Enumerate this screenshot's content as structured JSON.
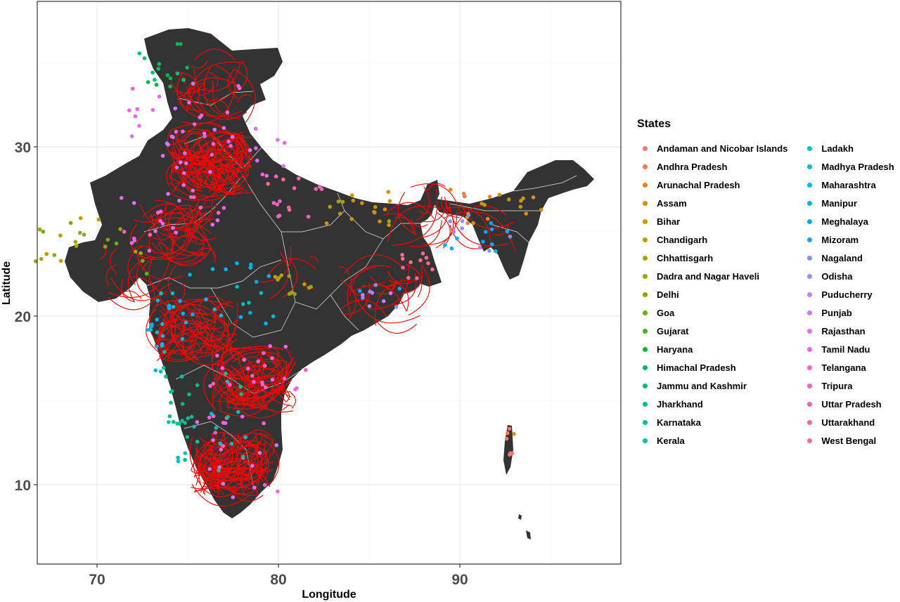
{
  "map": {
    "xlabel": "Longitude",
    "ylabel": "Latitude",
    "x_ticks": [
      "70",
      "80",
      "90"
    ],
    "y_ticks": [
      "10",
      "20",
      "30"
    ],
    "land_color": "#333333",
    "border_color": "#ffffff",
    "arc_color": "#ff0000",
    "panel_border": "#333333",
    "grid_color": "#ebebeb"
  },
  "legend": {
    "title": "States",
    "items": [
      {
        "label": "Andaman and Nicobar Islands",
        "color": "#F8766D"
      },
      {
        "label": "Andhra Pradesh",
        "color": "#F17D4F"
      },
      {
        "label": "Arunachal Pradesh",
        "color": "#E7851E"
      },
      {
        "label": "Assam",
        "color": "#DB8E00"
      },
      {
        "label": "Bihar",
        "color": "#CD9600"
      },
      {
        "label": "Chandigarh",
        "color": "#BE9C00"
      },
      {
        "label": "Chhattisgarh",
        "color": "#ADA200"
      },
      {
        "label": "Dadra and Nagar Haveli",
        "color": "#9AA700"
      },
      {
        "label": "Delhi",
        "color": "#84AC00"
      },
      {
        "label": "Goa",
        "color": "#69B100"
      },
      {
        "label": "Gujarat",
        "color": "#40B415"
      },
      {
        "label": "Haryana",
        "color": "#00B836"
      },
      {
        "label": "Himachal Pradesh",
        "color": "#00BB4F"
      },
      {
        "label": "Jammu and Kashmir",
        "color": "#00BD68"
      },
      {
        "label": "Jharkhand",
        "color": "#00BF7F"
      },
      {
        "label": "Karnataka",
        "color": "#00C096"
      },
      {
        "label": "Kerala",
        "color": "#00C0AC"
      },
      {
        "label": "Ladakh",
        "color": "#00BEC1"
      },
      {
        "label": "Madhya Pradesh",
        "color": "#00BBD5"
      },
      {
        "label": "Maharashtra",
        "color": "#00B7E7"
      },
      {
        "label": "Manipur",
        "color": "#00B0F6"
      },
      {
        "label": "Meghalaya",
        "color": "#00A8FF"
      },
      {
        "label": "Mizoram",
        "color": "#1F9EFF"
      },
      {
        "label": "Nagaland",
        "color": "#7B94FF"
      },
      {
        "label": "Odisha",
        "color": "#A18AFF"
      },
      {
        "label": "Puducherry",
        "color": "#BE80FF"
      },
      {
        "label": "Punjab",
        "color": "#D575FE"
      },
      {
        "label": "Rajasthan",
        "color": "#E76BF3"
      },
      {
        "label": "Tamil Nadu",
        "color": "#F564E3"
      },
      {
        "label": "Telangana",
        "color": "#FD61D1"
      },
      {
        "label": "Tripura",
        "color": "#FF61BD"
      },
      {
        "label": "Uttar Pradesh",
        "color": "#FF64A8"
      },
      {
        "label": "Uttarakhand",
        "color": "#FF6A91"
      },
      {
        "label": "West Bengal",
        "color": "#FF6C91"
      }
    ]
  }
}
